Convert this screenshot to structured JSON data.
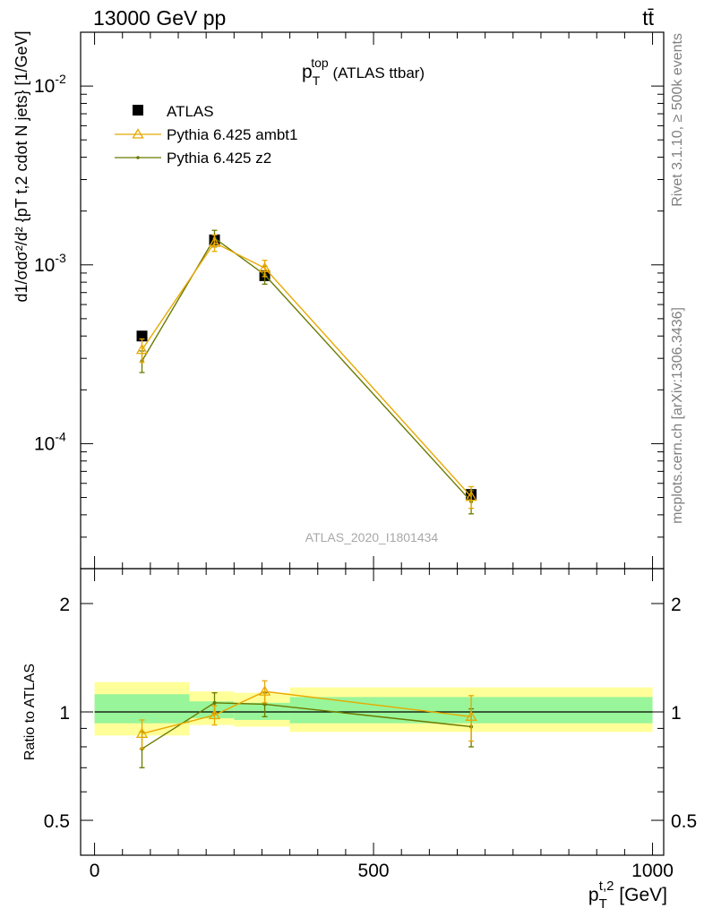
{
  "header": {
    "left": "13000 GeV pp",
    "right": "tt̄"
  },
  "side_notes": {
    "rivet": "Rivet 3.1.10, ≥ 500k events",
    "mcplots": "mcplots.cern.ch [arXiv:1306.3436]"
  },
  "colors": {
    "atlas": "#000000",
    "ambt1": "#e8a800",
    "z2": "#6b7a00",
    "band_inner": "#99f599",
    "band_outer": "#ffff99"
  },
  "chart_data": [
    {
      "type": "line",
      "title_main": "p",
      "title_sub": "T",
      "title_sup": "top",
      "title_rest": " (ATLAS ttbar)",
      "watermark": "ATLAS_2020_I1801434",
      "ylabel": "d1/σdσ²/d² {pT t,2 cdot N jets} [1/GeV]",
      "yscale": "log",
      "ylim": [
        2e-05,
        0.02
      ],
      "xlim": [
        -25,
        1020
      ],
      "ytick_labels": [
        "10",
        "10",
        "10"
      ],
      "ytick_exponents": [
        "-2",
        "-3",
        "-4"
      ],
      "ytick_values": [
        0.01,
        0.001,
        0.0001
      ],
      "legend_position": "top-left",
      "legend": [
        "ATLAS",
        "Pythia 6.425 ambt1",
        "Pythia 6.425 z2"
      ],
      "bins": [
        [
          0,
          170
        ],
        [
          170,
          250
        ],
        [
          250,
          350
        ],
        [
          350,
          1000
        ]
      ],
      "x": [
        85,
        215,
        305,
        675
      ],
      "series": [
        {
          "name": "ATLAS",
          "marker": "square",
          "values": [
            0.0004,
            0.00138,
            0.00087,
            5.2e-05
          ]
        },
        {
          "name": "Pythia 6.425 ambt1",
          "marker": "triangle",
          "values": [
            0.000335,
            0.00133,
            0.00096,
            5.05e-05
          ],
          "err": [
            5e-05,
            0.00014,
            0.0001,
            7e-06
          ]
        },
        {
          "name": "Pythia 6.425 z2",
          "marker": "dot",
          "values": [
            0.00029,
            0.00141,
            0.00088,
            4.75e-05
          ],
          "err": [
            4e-05,
            0.00015,
            0.0001,
            7e-06
          ]
        }
      ]
    },
    {
      "type": "line",
      "ylabel": "Ratio to ATLAS",
      "xlabel_main": "p",
      "xlabel_sub": "T",
      "xlabel_sup": "t,2",
      "xlabel_rest": " [GeV]",
      "yscale": "log",
      "ylim": [
        0.4,
        2.5
      ],
      "ytick_labels": [
        "2",
        "1",
        "0.5"
      ],
      "ytick_values": [
        2,
        1,
        0.5
      ],
      "xtick_labels": [
        "0",
        "500",
        "1000"
      ],
      "xtick_values": [
        0,
        500,
        1000
      ],
      "bands": [
        {
          "x0": 0,
          "x1": 170,
          "inner": [
            0.93,
            1.12
          ],
          "outer": [
            0.86,
            1.21
          ]
        },
        {
          "x0": 170,
          "x1": 250,
          "inner": [
            0.96,
            1.07
          ],
          "outer": [
            0.92,
            1.14
          ]
        },
        {
          "x0": 250,
          "x1": 350,
          "inner": [
            0.95,
            1.06
          ],
          "outer": [
            0.91,
            1.13
          ]
        },
        {
          "x0": 350,
          "x1": 1000,
          "inner": [
            0.93,
            1.1
          ],
          "outer": [
            0.88,
            1.17
          ]
        }
      ],
      "x": [
        85,
        215,
        305,
        675
      ],
      "series": [
        {
          "name": "Pythia 6.425 ambt1",
          "marker": "triangle",
          "values": [
            0.87,
            0.98,
            1.14,
            0.97
          ],
          "err": [
            0.08,
            0.06,
            0.08,
            0.14
          ]
        },
        {
          "name": "Pythia 6.425 z2",
          "marker": "dot",
          "values": [
            0.79,
            1.06,
            1.05,
            0.91
          ],
          "err": [
            0.09,
            0.07,
            0.08,
            0.11
          ]
        }
      ]
    }
  ]
}
